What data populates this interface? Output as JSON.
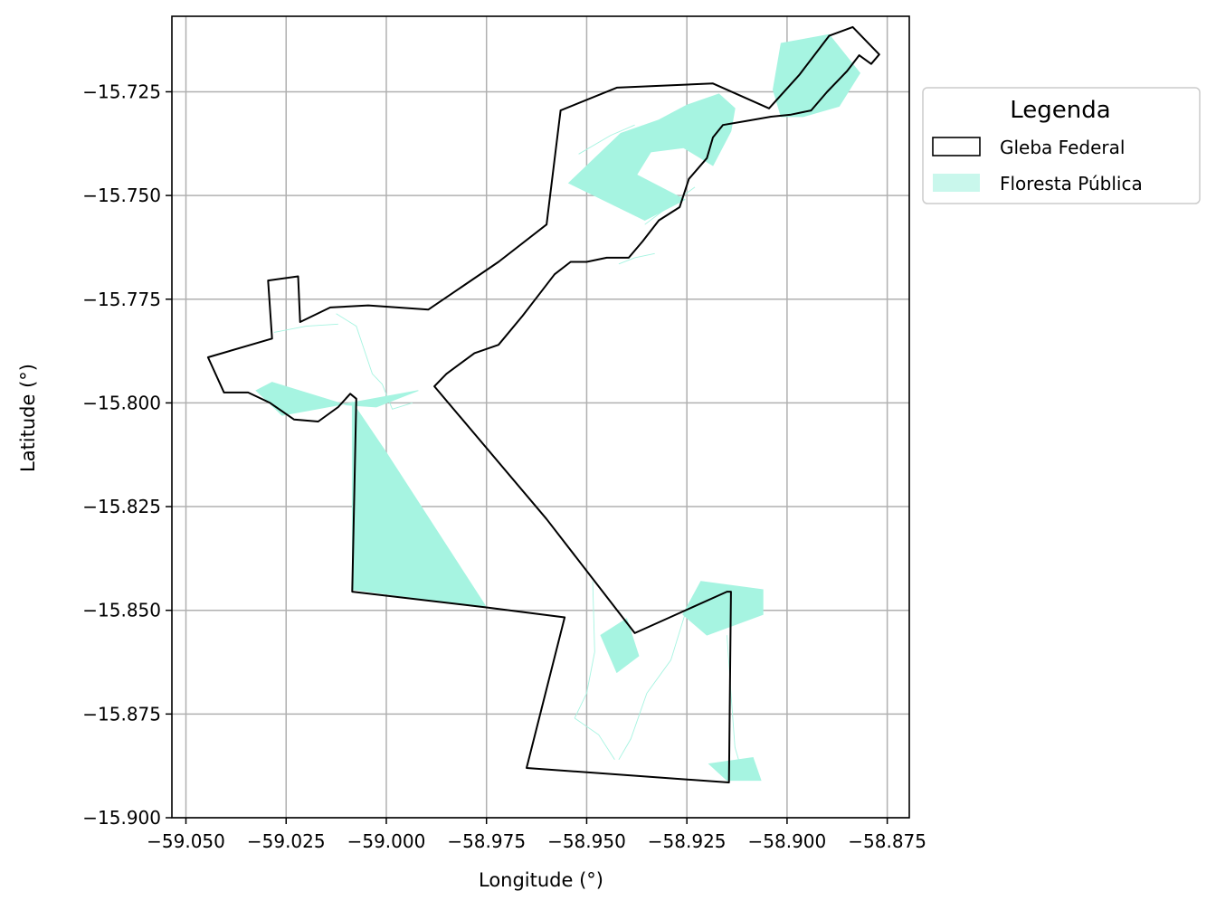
{
  "map": {
    "xlabel": "Longitude (°)",
    "ylabel": "Latitude (°)",
    "xlim": [
      -59.0535,
      -58.8695
    ],
    "ylim": [
      -15.9,
      -15.7068
    ],
    "x_ticks": [
      -59.05,
      -59.025,
      -59.0,
      -58.975,
      -58.95,
      -58.925,
      -58.9,
      -58.875
    ],
    "x_tick_labels": [
      "−59.050",
      "−59.025",
      "−59.000",
      "−58.975",
      "−58.950",
      "−58.925",
      "−58.900",
      "−58.875"
    ],
    "y_ticks": [
      -15.725,
      -15.75,
      -15.775,
      -15.8,
      -15.825,
      -15.85,
      -15.875,
      -15.9
    ],
    "y_tick_labels": [
      "−15.725",
      "−15.750",
      "−15.775",
      "−15.800",
      "−15.825",
      "−15.850",
      "−15.875",
      "−15.900"
    ],
    "grid": true,
    "colors": {
      "floresta_fill": "#a6f4e1",
      "floresta_legend": "#c9f7ec",
      "gleba_stroke": "#000000",
      "grid": "#b0b0b0"
    },
    "legend": {
      "title": "Legenda",
      "placement": "outside-upper-right",
      "entries": [
        {
          "label": "Gleba Federal",
          "kind": "outline"
        },
        {
          "label": "Floresta Pública",
          "kind": "fill"
        }
      ]
    },
    "floresta_publica": [
      [
        [
          -58.9035,
          -15.7245
        ],
        [
          -58.9015,
          -15.7133
        ],
        [
          -58.8895,
          -15.7112
        ],
        [
          -58.8818,
          -15.7205
        ],
        [
          -58.887,
          -15.7285
        ],
        [
          -58.896,
          -15.731
        ],
        [
          -58.9015,
          -15.731
        ]
      ],
      [
        [
          -58.9545,
          -15.747
        ],
        [
          -58.9415,
          -15.735
        ],
        [
          -58.932,
          -15.7318
        ],
        [
          -58.925,
          -15.7282
        ],
        [
          -58.917,
          -15.7255
        ],
        [
          -58.913,
          -15.729
        ],
        [
          -58.914,
          -15.7345
        ],
        [
          -58.9185,
          -15.7428
        ],
        [
          -58.9258,
          -15.7385
        ],
        [
          -58.934,
          -15.7395
        ],
        [
          -58.9375,
          -15.745
        ],
        [
          -58.9255,
          -15.751
        ],
        [
          -58.9355,
          -15.756
        ]
      ],
      [
        [
          -58.992,
          -15.797
        ],
        [
          -59.0025,
          -15.801
        ],
        [
          -59.01,
          -15.8005
        ],
        [
          -59.0285,
          -15.795
        ],
        [
          -59.0325,
          -15.797
        ],
        [
          -59.026,
          -15.803
        ]
      ],
      [
        [
          -59.0085,
          -15.7998
        ],
        [
          -59.0085,
          -15.845
        ],
        [
          -58.975,
          -15.8493
        ],
        [
          -59.0,
          -15.812
        ]
      ],
      [
        [
          -58.9215,
          -15.843
        ],
        [
          -58.906,
          -15.845
        ],
        [
          -58.906,
          -15.851
        ],
        [
          -58.92,
          -15.856
        ],
        [
          -58.926,
          -15.851
        ]
      ],
      [
        [
          -58.9465,
          -15.856
        ],
        [
          -58.94,
          -15.852
        ],
        [
          -58.937,
          -15.861
        ],
        [
          -58.9425,
          -15.865
        ]
      ],
      [
        [
          -58.9195,
          -15.887
        ],
        [
          -58.9085,
          -15.8855
        ],
        [
          -58.9065,
          -15.891
        ],
        [
          -58.915,
          -15.891
        ]
      ]
    ],
    "floresta_thin_lines": [
      [
        [
          -59.0125,
          -15.7785
        ],
        [
          -59.0075,
          -15.7815
        ],
        [
          -59.0035,
          -15.793
        ],
        [
          -59.001,
          -15.7955
        ],
        [
          -58.9985,
          -15.8015
        ],
        [
          -58.9935,
          -15.8
        ]
      ],
      [
        [
          -59.028,
          -15.783
        ],
        [
          -59.02,
          -15.7815
        ],
        [
          -59.012,
          -15.781
        ]
      ],
      [
        [
          -58.938,
          -15.733
        ],
        [
          -58.944,
          -15.7355
        ],
        [
          -58.952,
          -15.74
        ]
      ],
      [
        [
          -58.9355,
          -15.757
        ],
        [
          -58.93,
          -15.753
        ],
        [
          -58.923,
          -15.748
        ]
      ],
      [
        [
          -58.942,
          -15.7665
        ],
        [
          -58.938,
          -15.765
        ],
        [
          -58.933,
          -15.764
        ]
      ],
      [
        [
          -58.9485,
          -15.843
        ],
        [
          -58.948,
          -15.86
        ],
        [
          -58.95,
          -15.87
        ],
        [
          -58.953,
          -15.876
        ]
      ],
      [
        [
          -58.9255,
          -15.851
        ],
        [
          -58.929,
          -15.862
        ],
        [
          -58.935,
          -15.87
        ],
        [
          -58.939,
          -15.881
        ],
        [
          -58.942,
          -15.886
        ]
      ],
      [
        [
          -58.915,
          -15.856
        ],
        [
          -58.914,
          -15.87
        ],
        [
          -58.913,
          -15.883
        ],
        [
          -58.9115,
          -15.888
        ]
      ],
      [
        [
          -58.953,
          -15.876
        ],
        [
          -58.947,
          -15.88
        ],
        [
          -58.943,
          -15.886
        ]
      ]
    ],
    "gleba_federal": [
      [
        -58.9565,
        -15.729
      ],
      [
        -58.9175,
        -15.724
      ],
      [
        -58.8965,
        -15.7205
      ],
      [
        -58.8905,
        -15.7125
      ],
      [
        -58.8836,
        -15.7094
      ],
      [
        -58.8788,
        -15.716
      ],
      [
        -58.8855,
        -15.7215
      ],
      [
        -58.8895,
        -15.729
      ],
      [
        -58.8925,
        -15.731
      ],
      [
        -58.905,
        -15.7315
      ],
      [
        -58.9135,
        -15.734
      ],
      [
        -58.917,
        -15.74
      ],
      [
        -58.9215,
        -15.748
      ],
      [
        -58.9285,
        -15.751
      ],
      [
        -58.9325,
        -15.757
      ],
      [
        -58.9385,
        -15.762
      ],
      [
        -58.945,
        -15.764
      ],
      [
        -58.9525,
        -15.765
      ],
      [
        -58.96,
        -15.766
      ],
      [
        -58.963,
        -15.77
      ],
      [
        -58.9675,
        -15.777
      ],
      [
        -58.9745,
        -15.786
      ],
      [
        -58.98,
        -15.7905
      ],
      [
        -58.9875,
        -15.7965
      ],
      [
        -58.9655,
        -15.759
      ],
      [
        -58.957,
        -15.7295
      ]
    ],
    "gleba_main": [
      [
        -58.9565,
        -15.7295
      ],
      [
        -58.9425,
        -15.724
      ],
      [
        -58.9185,
        -15.723
      ],
      [
        -58.9045,
        -15.729
      ],
      [
        -58.897,
        -15.721
      ],
      [
        -58.8895,
        -15.7115
      ],
      [
        -58.8836,
        -15.7094
      ],
      [
        -58.877,
        -15.716
      ],
      [
        -58.879,
        -15.7183
      ],
      [
        -58.882,
        -15.7162
      ],
      [
        -58.885,
        -15.72
      ],
      [
        -58.887,
        -15.722
      ],
      [
        -58.89,
        -15.725
      ],
      [
        -58.894,
        -15.7295
      ],
      [
        -58.899,
        -15.7305
      ],
      [
        -58.904,
        -15.731
      ],
      [
        -58.91,
        -15.732
      ],
      [
        -58.916,
        -15.733
      ],
      [
        -58.9185,
        -15.736
      ],
      [
        -58.92,
        -15.741
      ],
      [
        -58.9245,
        -15.746
      ],
      [
        -58.9268,
        -15.7528
      ],
      [
        -58.932,
        -15.756
      ],
      [
        -58.936,
        -15.761
      ],
      [
        -58.9395,
        -15.765
      ],
      [
        -58.945,
        -15.765
      ],
      [
        -58.95,
        -15.766
      ],
      [
        -58.954,
        -15.766
      ],
      [
        -58.958,
        -15.769
      ],
      [
        -58.962,
        -15.774
      ],
      [
        -58.966,
        -15.779
      ],
      [
        -58.972,
        -15.786
      ],
      [
        -58.978,
        -15.788
      ],
      [
        -58.985,
        -15.793
      ],
      [
        -58.988,
        -15.796
      ],
      [
        -58.96,
        -15.828
      ],
      [
        -58.938,
        -15.8555
      ],
      [
        -58.915,
        -15.8455
      ],
      [
        -58.914,
        -15.8455
      ],
      [
        -58.9145,
        -15.8915
      ],
      [
        -58.965,
        -15.888
      ],
      [
        -58.9555,
        -15.8517
      ],
      [
        -58.975,
        -15.8493
      ],
      [
        -59.0085,
        -15.8455
      ],
      [
        -59.0075,
        -15.799
      ],
      [
        -59.009,
        -15.7978
      ],
      [
        -59.012,
        -15.801
      ],
      [
        -59.017,
        -15.8045
      ],
      [
        -59.023,
        -15.804
      ],
      [
        -59.029,
        -15.8
      ],
      [
        -59.0345,
        -15.7975
      ],
      [
        -59.0405,
        -15.7975
      ],
      [
        -59.0445,
        -15.789
      ],
      [
        -59.0285,
        -15.7845
      ],
      [
        -59.0295,
        -15.7705
      ],
      [
        -59.022,
        -15.7695
      ],
      [
        -59.0215,
        -15.7805
      ],
      [
        -59.014,
        -15.777
      ],
      [
        -59.0045,
        -15.7765
      ],
      [
        -58.9895,
        -15.7775
      ],
      [
        -58.972,
        -15.766
      ],
      [
        -58.96,
        -15.757
      ],
      [
        -58.9565,
        -15.7295
      ]
    ]
  }
}
